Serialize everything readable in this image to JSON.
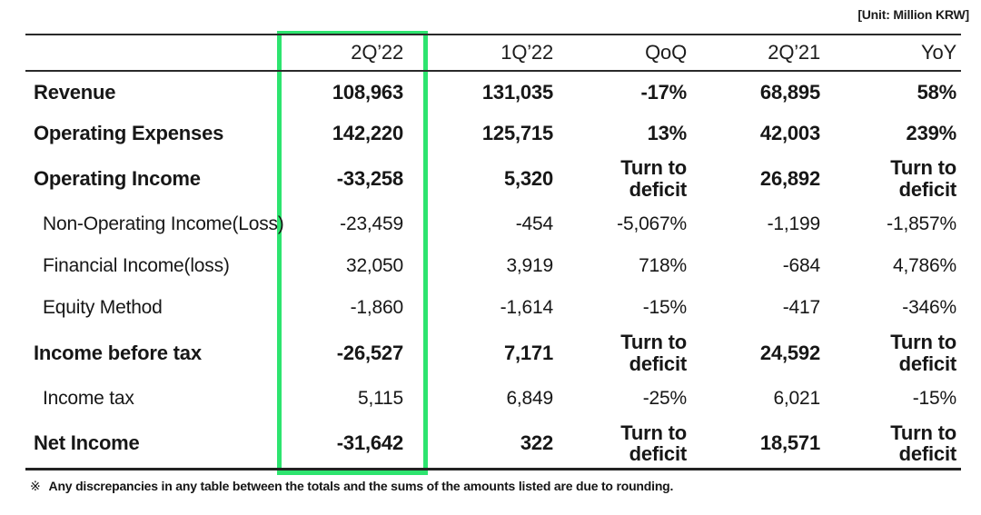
{
  "unit_label": "[Unit: Million KRW]",
  "table": {
    "columns": [
      "",
      "2Q’22",
      "1Q’22",
      "QoQ",
      "2Q’21",
      "YoY"
    ],
    "highlighted_column": "2Q’22",
    "highlight_color": "#2de46f",
    "rows": [
      {
        "label": "Revenue",
        "bold": true,
        "indent": false,
        "values": [
          "108,963",
          "131,035",
          "-17%",
          "68,895",
          "58%"
        ]
      },
      {
        "label": "Operating Expenses",
        "bold": true,
        "indent": false,
        "values": [
          "142,220",
          "125,715",
          "13%",
          "42,003",
          "239%"
        ]
      },
      {
        "label": "Operating Income",
        "bold": true,
        "indent": false,
        "values": [
          "-33,258",
          "5,320",
          "Turn to\ndeficit",
          "26,892",
          "Turn to\ndeficit"
        ]
      },
      {
        "label": "Non-Operating Income(Loss)",
        "bold": false,
        "indent": true,
        "values": [
          "-23,459",
          "-454",
          "-5,067%",
          "-1,199",
          "-1,857%"
        ]
      },
      {
        "label": "Financial Income(loss)",
        "bold": false,
        "indent": true,
        "values": [
          "32,050",
          "3,919",
          "718%",
          "-684",
          "4,786%"
        ]
      },
      {
        "label": "Equity Method",
        "bold": false,
        "indent": true,
        "values": [
          "-1,860",
          "-1,614",
          "-15%",
          "-417",
          "-346%"
        ]
      },
      {
        "label": "Income before tax",
        "bold": true,
        "indent": false,
        "values": [
          "-26,527",
          "7,171",
          "Turn to\ndeficit",
          "24,592",
          "Turn to\ndeficit"
        ]
      },
      {
        "label": "Income tax",
        "bold": false,
        "indent": true,
        "values": [
          "5,115",
          "6,849",
          "-25%",
          "6,021",
          "-15%"
        ]
      },
      {
        "label": "Net Income",
        "bold": true,
        "indent": false,
        "values": [
          "-31,642",
          "322",
          "Turn to\ndeficit",
          "18,571",
          "Turn to\ndeficit"
        ]
      }
    ]
  },
  "footnote": {
    "marker": "※",
    "text": "Any discrepancies in any table between the totals and the sums of the amounts listed are due to rounding."
  }
}
